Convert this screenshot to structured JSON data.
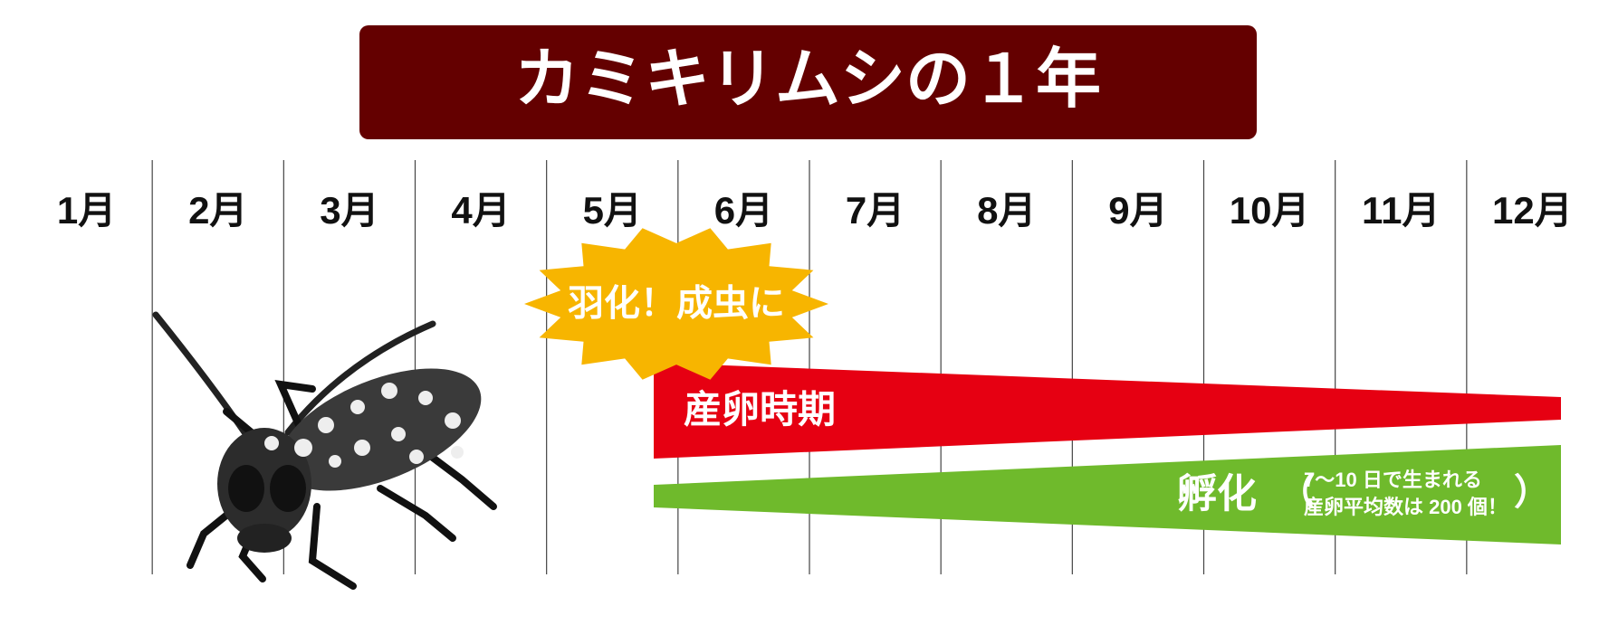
{
  "title": "カミキリムシの１年",
  "months": [
    "1月",
    "2月",
    "3月",
    "4月",
    "5月",
    "6月",
    "7月",
    "8月",
    "9月",
    "10月",
    "11月",
    "12月"
  ],
  "events": {
    "emergence": "羽化！成虫に",
    "egg_laying": "産卵時期",
    "hatching": "孵化",
    "hatching_note": {
      "open": "（",
      "lines": [
        "7〜10 日で生まれる",
        "産卵平均数は 200 個！"
      ],
      "close": "）"
    }
  }
}
